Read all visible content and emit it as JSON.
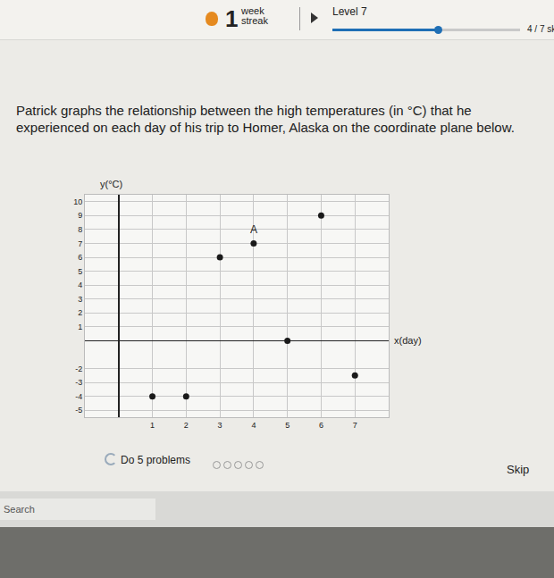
{
  "page": {
    "streak_number": "1",
    "streak_label": "week streak",
    "level": "Level 7",
    "progress": "4 / 7 sk",
    "question": "Patrick graphs the relationship between the high temperatures (in °C) that he experienced on each day of his trip to Homer, Alaska on the coordinate plane below.",
    "task": "Do 5 problems",
    "skip": "Skip",
    "search": "Search"
  },
  "chart_data": {
    "type": "scatter",
    "x_label": "x(day)",
    "y_label": "y(°C)",
    "x": [
      1,
      2,
      3,
      4,
      5,
      6,
      7
    ],
    "values": [
      -4,
      -4,
      6,
      7,
      0,
      9,
      -2.5
    ],
    "annotations": [
      {
        "text": "A",
        "x": 4,
        "y": 8
      }
    ],
    "xlim": [
      -1,
      8
    ],
    "ylim": [
      -5.5,
      10.5
    ],
    "xticks": [
      1,
      2,
      3,
      4,
      5,
      6,
      7
    ],
    "yticks": [
      -5,
      -4,
      -3,
      -2,
      1,
      2,
      3,
      4,
      5,
      6,
      7,
      8,
      9,
      10
    ],
    "grid": true,
    "color": "#1a1a1a",
    "marker": "circle"
  }
}
